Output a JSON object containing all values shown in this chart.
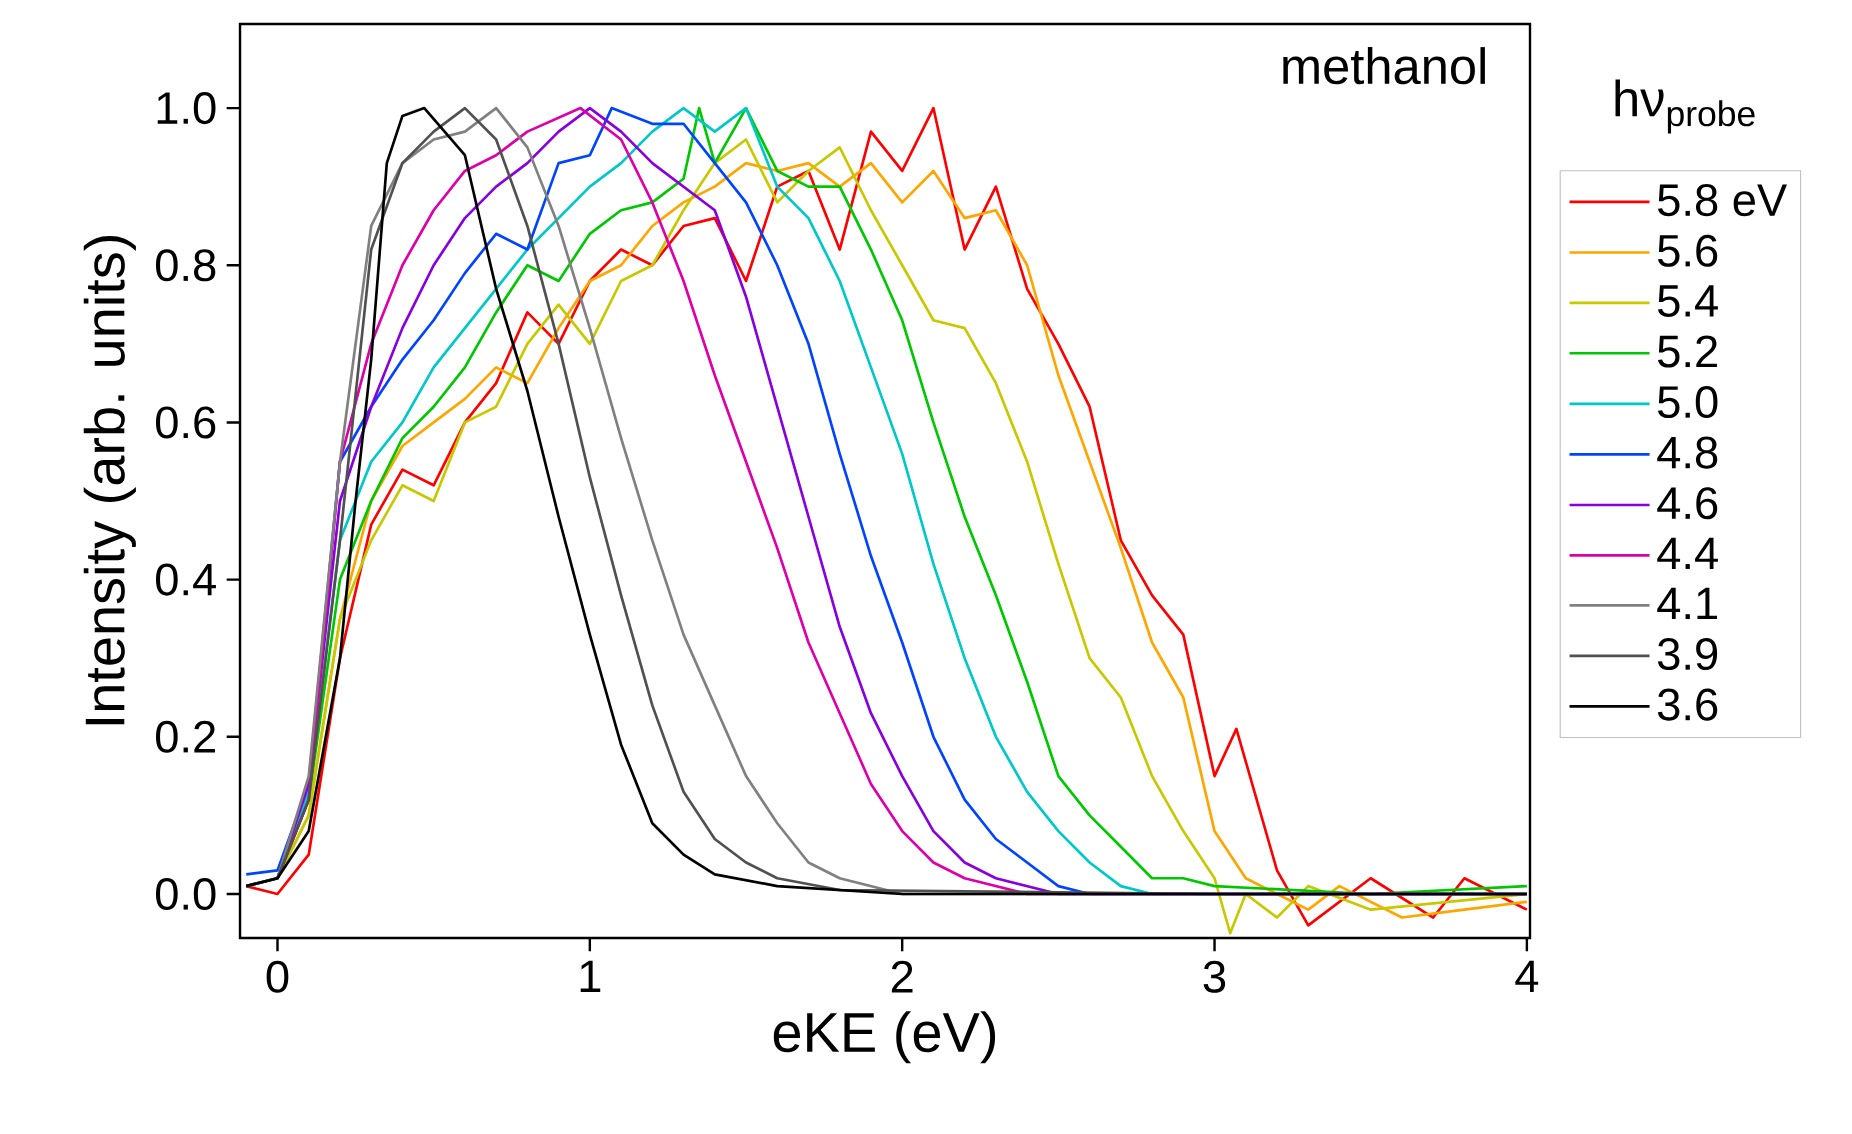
{
  "chart_data": {
    "type": "line",
    "xlabel": "eKE (eV)",
    "ylabel": "Intensity (arb. units)",
    "legend_title": "hν$_{probe}$",
    "annotations": [
      "methanol"
    ],
    "xlim": [
      -0.12,
      4.01
    ],
    "ylim": [
      -0.056,
      1.107
    ],
    "xticks": [
      0,
      1,
      2,
      3,
      4
    ],
    "yticks": [
      {
        "value": 0,
        "label": "0.0"
      },
      {
        "value": 0.2,
        "label": "0.2"
      },
      {
        "value": 0.4,
        "label": "0.4"
      },
      {
        "value": 0.6,
        "label": "0.6"
      },
      {
        "value": 0.8,
        "label": "0.8"
      },
      {
        "value": 1.0,
        "label": "1.0"
      }
    ],
    "legend": "right",
    "series": [
      {
        "name": "5.8 eV",
        "color": "#ff0000",
        "x": [
          -0.1,
          0.0,
          0.1,
          0.2,
          0.3,
          0.4,
          0.5,
          0.6,
          0.7,
          0.8,
          0.9,
          1.0,
          1.1,
          1.2,
          1.3,
          1.4,
          1.5,
          1.6,
          1.7,
          1.8,
          1.9,
          2.0,
          2.1,
          2.2,
          2.3,
          2.4,
          2.5,
          2.6,
          2.7,
          2.8,
          2.9,
          3.0,
          3.07,
          3.2,
          3.3,
          3.5,
          3.7,
          3.8,
          4.0
        ],
        "values": [
          0.01,
          0.0,
          0.05,
          0.3,
          0.47,
          0.54,
          0.52,
          0.6,
          0.65,
          0.74,
          0.7,
          0.78,
          0.82,
          0.8,
          0.85,
          0.86,
          0.78,
          0.9,
          0.92,
          0.82,
          0.97,
          0.92,
          1.0,
          0.82,
          0.9,
          0.77,
          0.7,
          0.62,
          0.45,
          0.38,
          0.33,
          0.15,
          0.21,
          0.03,
          -0.04,
          0.02,
          -0.03,
          0.02,
          -0.02
        ]
      },
      {
        "name": "5.6",
        "color": "#ffa500",
        "x": [
          -0.1,
          0.0,
          0.1,
          0.2,
          0.3,
          0.4,
          0.5,
          0.6,
          0.7,
          0.8,
          0.9,
          1.0,
          1.1,
          1.2,
          1.3,
          1.4,
          1.5,
          1.6,
          1.7,
          1.8,
          1.9,
          2.0,
          2.1,
          2.2,
          2.3,
          2.4,
          2.5,
          2.6,
          2.7,
          2.8,
          2.9,
          3.0,
          3.1,
          3.2,
          3.3,
          3.4,
          3.6,
          3.8,
          4.0
        ],
        "values": [
          0.01,
          0.02,
          0.1,
          0.35,
          0.5,
          0.57,
          0.6,
          0.63,
          0.67,
          0.65,
          0.72,
          0.78,
          0.8,
          0.85,
          0.88,
          0.9,
          0.93,
          0.92,
          0.93,
          0.9,
          0.93,
          0.88,
          0.92,
          0.86,
          0.87,
          0.8,
          0.66,
          0.55,
          0.44,
          0.32,
          0.25,
          0.08,
          0.02,
          0.0,
          -0.02,
          0.01,
          -0.03,
          -0.02,
          -0.01
        ]
      },
      {
        "name": "5.4",
        "color": "#c8c800",
        "x": [
          -0.1,
          0.0,
          0.1,
          0.2,
          0.3,
          0.4,
          0.5,
          0.6,
          0.7,
          0.8,
          0.9,
          1.0,
          1.1,
          1.2,
          1.3,
          1.4,
          1.5,
          1.6,
          1.7,
          1.8,
          1.9,
          2.0,
          2.1,
          2.2,
          2.3,
          2.4,
          2.5,
          2.6,
          2.7,
          2.8,
          2.9,
          3.0,
          3.05,
          3.1,
          3.2,
          3.3,
          3.5,
          4.0
        ],
        "values": [
          0.01,
          0.02,
          0.1,
          0.35,
          0.45,
          0.52,
          0.5,
          0.6,
          0.62,
          0.7,
          0.75,
          0.7,
          0.78,
          0.8,
          0.87,
          0.93,
          0.96,
          0.88,
          0.92,
          0.95,
          0.87,
          0.8,
          0.73,
          0.72,
          0.65,
          0.55,
          0.42,
          0.3,
          0.25,
          0.15,
          0.08,
          0.02,
          -0.05,
          0.0,
          -0.03,
          0.01,
          -0.02,
          0.0
        ]
      },
      {
        "name": "5.2",
        "color": "#00c800",
        "x": [
          -0.1,
          0.0,
          0.1,
          0.2,
          0.3,
          0.4,
          0.5,
          0.6,
          0.7,
          0.8,
          0.9,
          1.0,
          1.1,
          1.2,
          1.3,
          1.35,
          1.4,
          1.5,
          1.6,
          1.7,
          1.8,
          1.9,
          2.0,
          2.1,
          2.2,
          2.3,
          2.4,
          2.5,
          2.6,
          2.7,
          2.8,
          2.9,
          3.0,
          3.5,
          4.0
        ],
        "values": [
          0.01,
          0.02,
          0.12,
          0.4,
          0.5,
          0.58,
          0.62,
          0.67,
          0.74,
          0.8,
          0.78,
          0.84,
          0.87,
          0.88,
          0.91,
          1.0,
          0.93,
          1.0,
          0.92,
          0.9,
          0.9,
          0.82,
          0.73,
          0.6,
          0.48,
          0.38,
          0.27,
          0.15,
          0.1,
          0.06,
          0.02,
          0.02,
          0.01,
          0.0,
          0.01
        ]
      },
      {
        "name": "5.0",
        "color": "#00c8c8",
        "x": [
          -0.1,
          0.0,
          0.1,
          0.2,
          0.3,
          0.4,
          0.5,
          0.6,
          0.7,
          0.8,
          0.9,
          1.0,
          1.1,
          1.2,
          1.3,
          1.4,
          1.5,
          1.6,
          1.7,
          1.8,
          1.9,
          2.0,
          2.1,
          2.2,
          2.3,
          2.4,
          2.5,
          2.6,
          2.7,
          2.8,
          3.0,
          4.0
        ],
        "values": [
          0.01,
          0.02,
          0.13,
          0.45,
          0.55,
          0.6,
          0.67,
          0.72,
          0.77,
          0.82,
          0.86,
          0.9,
          0.93,
          0.97,
          1.0,
          0.97,
          1.0,
          0.9,
          0.86,
          0.78,
          0.67,
          0.56,
          0.42,
          0.3,
          0.2,
          0.13,
          0.08,
          0.04,
          0.01,
          0.0,
          0.0,
          0.0
        ]
      },
      {
        "name": "4.8",
        "color": "#0044ff",
        "x": [
          -0.1,
          0.0,
          0.1,
          0.2,
          0.3,
          0.4,
          0.5,
          0.6,
          0.7,
          0.8,
          0.9,
          1.0,
          1.07,
          1.2,
          1.3,
          1.4,
          1.5,
          1.6,
          1.7,
          1.8,
          1.9,
          2.0,
          2.1,
          2.2,
          2.3,
          2.4,
          2.5,
          2.6,
          3.0,
          4.0
        ],
        "values": [
          0.025,
          0.03,
          0.14,
          0.55,
          0.62,
          0.68,
          0.73,
          0.79,
          0.84,
          0.82,
          0.93,
          0.94,
          1.0,
          0.98,
          0.98,
          0.93,
          0.88,
          0.8,
          0.7,
          0.56,
          0.43,
          0.32,
          0.2,
          0.12,
          0.07,
          0.04,
          0.01,
          0.0,
          0.0,
          0.0
        ]
      },
      {
        "name": "4.6",
        "color": "#8800dd",
        "x": [
          0.0,
          0.1,
          0.2,
          0.3,
          0.4,
          0.5,
          0.6,
          0.7,
          0.8,
          0.9,
          1.0,
          1.1,
          1.2,
          1.3,
          1.4,
          1.5,
          1.6,
          1.7,
          1.8,
          1.9,
          2.0,
          2.1,
          2.2,
          2.3,
          2.5,
          3.0,
          4.0
        ],
        "values": [
          0.02,
          0.14,
          0.5,
          0.62,
          0.72,
          0.8,
          0.86,
          0.9,
          0.93,
          0.97,
          1.0,
          0.97,
          0.93,
          0.9,
          0.87,
          0.76,
          0.62,
          0.48,
          0.34,
          0.23,
          0.15,
          0.08,
          0.04,
          0.02,
          0.0,
          0.0,
          0.0
        ]
      },
      {
        "name": "4.4",
        "color": "#dd00aa",
        "x": [
          -0.1,
          0.0,
          0.1,
          0.2,
          0.3,
          0.4,
          0.5,
          0.6,
          0.7,
          0.8,
          0.97,
          1.1,
          1.2,
          1.3,
          1.4,
          1.5,
          1.6,
          1.7,
          1.8,
          1.9,
          2.0,
          2.1,
          2.2,
          2.4,
          3.0,
          4.0
        ],
        "values": [
          0.01,
          0.02,
          0.12,
          0.55,
          0.7,
          0.8,
          0.87,
          0.92,
          0.94,
          0.97,
          1.0,
          0.96,
          0.88,
          0.78,
          0.66,
          0.55,
          0.44,
          0.32,
          0.23,
          0.14,
          0.08,
          0.04,
          0.02,
          0.0,
          0.0,
          0.0
        ]
      },
      {
        "name": "4.1",
        "color": "#808080",
        "x": [
          -0.1,
          0.0,
          0.1,
          0.2,
          0.3,
          0.4,
          0.5,
          0.6,
          0.7,
          0.8,
          0.9,
          1.0,
          1.1,
          1.2,
          1.3,
          1.4,
          1.5,
          1.6,
          1.7,
          1.8,
          2.0,
          3.0,
          4.0
        ],
        "values": [
          0.01,
          0.02,
          0.15,
          0.55,
          0.85,
          0.93,
          0.96,
          0.97,
          1.0,
          0.95,
          0.85,
          0.72,
          0.58,
          0.45,
          0.33,
          0.24,
          0.15,
          0.09,
          0.04,
          0.02,
          0.0,
          0.0,
          0.0
        ]
      },
      {
        "name": "3.9",
        "color": "#505050",
        "x": [
          -0.1,
          0.0,
          0.1,
          0.2,
          0.3,
          0.4,
          0.5,
          0.6,
          0.7,
          0.8,
          0.9,
          1.0,
          1.1,
          1.2,
          1.3,
          1.4,
          1.5,
          1.6,
          1.8,
          3.0,
          4.0
        ],
        "values": [
          0.01,
          0.02,
          0.12,
          0.45,
          0.82,
          0.93,
          0.97,
          1.0,
          0.96,
          0.85,
          0.7,
          0.53,
          0.38,
          0.24,
          0.13,
          0.07,
          0.04,
          0.02,
          0.005,
          0.0,
          0.0
        ]
      },
      {
        "name": "3.6",
        "color": "#000000",
        "x": [
          -0.1,
          0.0,
          0.1,
          0.2,
          0.25,
          0.3,
          0.35,
          0.4,
          0.47,
          0.6,
          0.7,
          0.8,
          0.9,
          1.0,
          1.1,
          1.2,
          1.3,
          1.4,
          1.6,
          2.0,
          3.0,
          4.0
        ],
        "values": [
          0.01,
          0.02,
          0.08,
          0.3,
          0.5,
          0.68,
          0.93,
          0.99,
          1.0,
          0.94,
          0.77,
          0.64,
          0.48,
          0.33,
          0.19,
          0.09,
          0.05,
          0.025,
          0.01,
          0.0,
          0.0,
          0.0
        ]
      }
    ]
  }
}
